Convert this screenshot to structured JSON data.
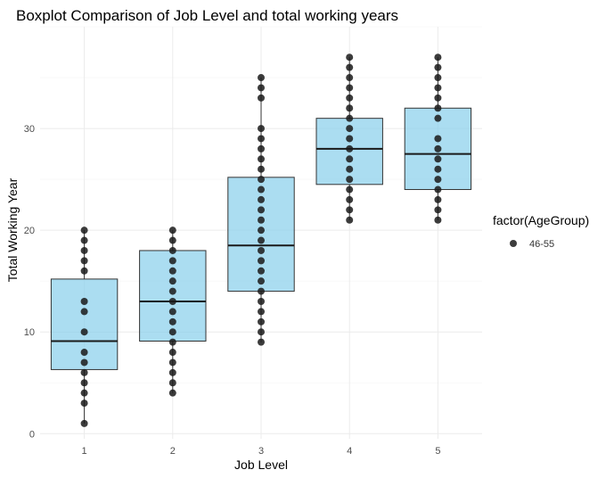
{
  "chart_data": {
    "type": "boxplot",
    "title": "Boxplot Comparison of Job Level and total working years",
    "xlabel": "Job Level",
    "ylabel": "Total Working Year",
    "categories": [
      "1",
      "2",
      "3",
      "4",
      "5"
    ],
    "ylim": [
      -0.5,
      40
    ],
    "yticks": [
      0,
      10,
      20,
      30
    ],
    "grid": true,
    "legend": {
      "title": "factor(AgeGroup)",
      "position": "right",
      "entries": [
        {
          "label": "46-55",
          "color": "#1a1a1a"
        }
      ]
    },
    "box_fill": "#87CEEB",
    "box_stroke": "#333333",
    "boxes": [
      {
        "category": "1",
        "min": 1,
        "q1": 6.3,
        "median": 9.1,
        "q3": 15.2,
        "max": 20
      },
      {
        "category": "2",
        "min": 4,
        "q1": 9.1,
        "median": 13,
        "q3": 18,
        "max": 20
      },
      {
        "category": "3",
        "min": 9,
        "q1": 14,
        "median": 18.5,
        "q3": 25.2,
        "max": 35
      },
      {
        "category": "4",
        "min": 21,
        "q1": 24.5,
        "median": 28,
        "q3": 31,
        "max": 37
      },
      {
        "category": "5",
        "min": 21,
        "q1": 24,
        "median": 27.5,
        "q3": 32,
        "max": 37
      }
    ],
    "points": [
      {
        "category": "1",
        "values": [
          1,
          3,
          4,
          5,
          6,
          7,
          8,
          10,
          12,
          13,
          16,
          17,
          18,
          19,
          20
        ]
      },
      {
        "category": "2",
        "values": [
          4,
          5,
          6,
          7,
          8,
          9,
          10,
          11,
          12,
          13,
          14,
          15,
          16,
          17,
          18,
          19,
          20
        ]
      },
      {
        "category": "3",
        "values": [
          9,
          10,
          11,
          12,
          13,
          14,
          15,
          16,
          17,
          18,
          19,
          20,
          21,
          22,
          23,
          24,
          25,
          26,
          27,
          28,
          29,
          30,
          33,
          34,
          35
        ]
      },
      {
        "category": "4",
        "values": [
          21,
          22,
          23,
          24,
          25,
          26,
          27,
          28,
          29,
          30,
          31,
          32,
          33,
          34,
          35,
          36,
          37
        ]
      },
      {
        "category": "5",
        "values": [
          21,
          22,
          23,
          24,
          25,
          26,
          27,
          28,
          29,
          31,
          32,
          33,
          34,
          35,
          36,
          37
        ]
      }
    ]
  }
}
